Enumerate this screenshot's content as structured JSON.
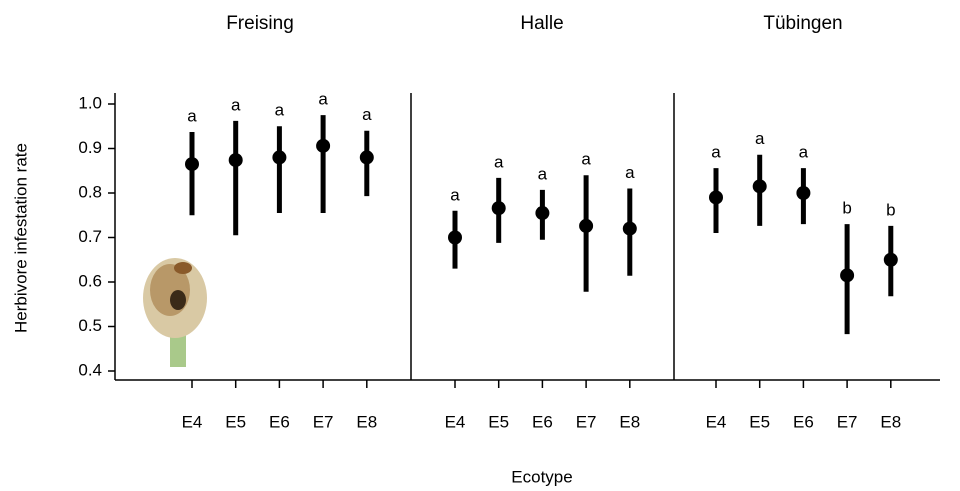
{
  "chart_data": [
    {
      "type": "pointrange",
      "title": "Freising",
      "ylabel": "Herbivore infestation rate",
      "ylim": [
        0.4,
        1.0
      ],
      "yticks": [
        {
          "value": 0.4,
          "label": "0.4"
        },
        {
          "value": 0.5,
          "label": "0.5"
        },
        {
          "value": 0.6,
          "label": "0.6"
        },
        {
          "value": 0.7,
          "label": "0.7"
        },
        {
          "value": 0.8,
          "label": "0.8"
        },
        {
          "value": 0.9,
          "label": "0.9"
        },
        {
          "value": 1.0,
          "label": "1.0"
        }
      ],
      "categories": [
        "E4",
        "E5",
        "E6",
        "E7",
        "E8"
      ],
      "values": [
        0.865,
        0.874,
        0.88,
        0.906,
        0.88
      ],
      "lower": [
        0.75,
        0.705,
        0.755,
        0.755,
        0.793
      ],
      "upper": [
        0.937,
        0.962,
        0.95,
        0.975,
        0.94
      ],
      "annotations": [
        "a",
        "a",
        "a",
        "a",
        "a"
      ],
      "color": "#000000"
    },
    {
      "type": "pointrange",
      "title": "Halle",
      "xlabel": "Ecotype",
      "categories": [
        "E4",
        "E5",
        "E6",
        "E7",
        "E8"
      ],
      "values": [
        0.7,
        0.766,
        0.755,
        0.726,
        0.72
      ],
      "lower": [
        0.63,
        0.688,
        0.695,
        0.578,
        0.614
      ],
      "upper": [
        0.76,
        0.834,
        0.807,
        0.84,
        0.81
      ],
      "annotations": [
        "a",
        "a",
        "a",
        "a",
        "a"
      ],
      "color": "#000000"
    },
    {
      "type": "pointrange",
      "title": "Tübingen",
      "categories": [
        "E4",
        "E5",
        "E6",
        "E7",
        "E8"
      ],
      "values": [
        0.79,
        0.815,
        0.8,
        0.615,
        0.65
      ],
      "lower": [
        0.71,
        0.726,
        0.73,
        0.483,
        0.568
      ],
      "upper": [
        0.856,
        0.886,
        0.856,
        0.73,
        0.726
      ],
      "annotations": [
        "a",
        "a",
        "a",
        "b",
        "b"
      ],
      "color": "#000000"
    }
  ]
}
